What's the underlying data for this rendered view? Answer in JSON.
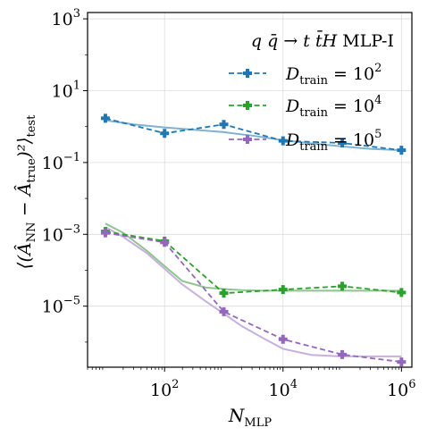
{
  "chart_data": {
    "type": "line",
    "title": "",
    "xlabel": {
      "main": "N",
      "sub": "MLP"
    },
    "ylabel": {
      "main": "⟨(Â",
      "sub1": "NN",
      "mid": " − Â",
      "sub2": "true",
      "end": ")²⟩",
      "sub3": "test"
    },
    "xscale": "log",
    "yscale": "log",
    "xlim": [
      5,
      1500000
    ],
    "ylim": [
      2e-07,
      1500
    ],
    "xticks": [
      {
        "value": 100,
        "base": "10",
        "exp": "2"
      },
      {
        "value": 10000,
        "base": "10",
        "exp": "4"
      },
      {
        "value": 1000000,
        "base": "10",
        "exp": "6"
      }
    ],
    "yticks": [
      {
        "value": 1e-05,
        "base": "10",
        "exp": "−5"
      },
      {
        "value": 0.001,
        "base": "10",
        "exp": "−3"
      },
      {
        "value": 0.1,
        "base": "10",
        "exp": "−1"
      },
      {
        "value": 10,
        "base": "10",
        "exp": "1"
      },
      {
        "value": 1000,
        "base": "10",
        "exp": "3"
      }
    ],
    "grid": true,
    "legend": {
      "placement": "top-right",
      "title": "q q̄ → t t̄ H MLP-I",
      "title_parts": {
        "a": "q",
        "b": "q̄",
        "arrow": " → ",
        "c": "t",
        "d": "t̄",
        "e": "H",
        "f": " MLP-I"
      },
      "entry_prefix": "D",
      "entry_sub": "train",
      "entry_eq": " = 10"
    },
    "series": [
      {
        "name": "D_train = 10^2",
        "exp_label": "2",
        "color": "#1f77b4",
        "fit_color": "#7fb2d1",
        "x": [
          10,
          100,
          1000,
          10000,
          100000,
          1000000
        ],
        "y": [
          1.7,
          0.65,
          1.15,
          0.4,
          0.35,
          0.22
        ],
        "fit": {
          "x": [
            10,
            30,
            100,
            300,
            1000,
            3000,
            10000,
            30000,
            100000,
            300000,
            1000000
          ],
          "y": [
            1.5,
            1.15,
            0.95,
            0.82,
            0.7,
            0.56,
            0.42,
            0.34,
            0.28,
            0.24,
            0.22
          ]
        }
      },
      {
        "name": "D_train = 10^4",
        "exp_label": "4",
        "color": "#2ca02c",
        "fit_color": "#8fc48f",
        "x": [
          10,
          100,
          1000,
          10000,
          100000,
          1000000
        ],
        "y": [
          0.0012,
          0.00065,
          2.3e-05,
          2.9e-05,
          3.6e-05,
          2.4e-05
        ],
        "fit": {
          "x": [
            10,
            20,
            50,
            100,
            200,
            500,
            1000,
            2000,
            5000,
            10000,
            100000,
            1000000
          ],
          "y": [
            0.002,
            0.0011,
            0.00035,
            0.00013,
            5e-05,
            3.3e-05,
            3e-05,
            2.8e-05,
            2.7e-05,
            2.7e-05,
            2.7e-05,
            2.7e-05
          ]
        }
      },
      {
        "name": "D_train = 10^5",
        "exp_label": "5",
        "color": "#9467bd",
        "fit_color": "#c7b0dd",
        "x": [
          10,
          100,
          1000,
          10000,
          100000,
          1000000
        ],
        "y": [
          0.0011,
          0.0006,
          7e-06,
          1.2e-06,
          4.5e-07,
          2.8e-07
        ],
        "fit": {
          "x": [
            10,
            20,
            50,
            100,
            200,
            500,
            1000,
            2000,
            5000,
            10000,
            30000,
            100000,
            1000000
          ],
          "y": [
            0.0016,
            0.00085,
            0.0003,
            0.00011,
            4e-05,
            1.35e-05,
            6.2e-06,
            2.8e-06,
            1.2e-06,
            6.5e-07,
            4.4e-07,
            4e-07,
            4e-07
          ]
        }
      }
    ]
  }
}
